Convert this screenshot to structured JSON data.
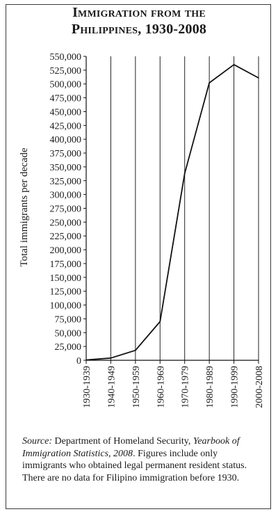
{
  "chart_data": {
    "type": "line",
    "title_line1": "Immigration from the",
    "title_line2": "Philippines, 1930-2008",
    "xlabel": "",
    "ylabel": "Total immigrants per decade",
    "categories": [
      "1930-1939",
      "1940-1949",
      "1950-1959",
      "1960-1969",
      "1970-1979",
      "1980-1989",
      "1990-1999",
      "2000-2008"
    ],
    "series": [
      {
        "values": [
          600,
          4000,
          18000,
          70000,
          338000,
          502000,
          535000,
          511000
        ]
      }
    ],
    "ylim": [
      0,
      550000
    ],
    "yticks": [
      0,
      25000,
      50000,
      75000,
      100000,
      125000,
      150000,
      175000,
      200000,
      225000,
      250000,
      275000,
      300000,
      325000,
      350000,
      375000,
      400000,
      425000,
      450000,
      475000,
      500000,
      525000,
      550000
    ],
    "ytick_labels": [
      "0",
      "25,000",
      "50,000",
      "75,000",
      "100,000",
      "125,000",
      "150,000",
      "175,000",
      "200,000",
      "225,000",
      "250,000",
      "275,000",
      "300,000",
      "325,000",
      "350,000",
      "375,000",
      "400,000",
      "425,000",
      "450,000",
      "475,000",
      "500,000",
      "525,000",
      "550,000"
    ],
    "grid": "vertical",
    "line_color": "#111111",
    "grid_color": "#222222"
  },
  "caption": {
    "source_label": "Source:",
    "source_org": " Department of Homeland Security, ",
    "source_work": "Yearbook of Immigration Statistics, 2008",
    "source_rest": ". Figures include only immigrants who obtained legal permanent resident status. There are no data for Filipino immigration before 1930."
  }
}
